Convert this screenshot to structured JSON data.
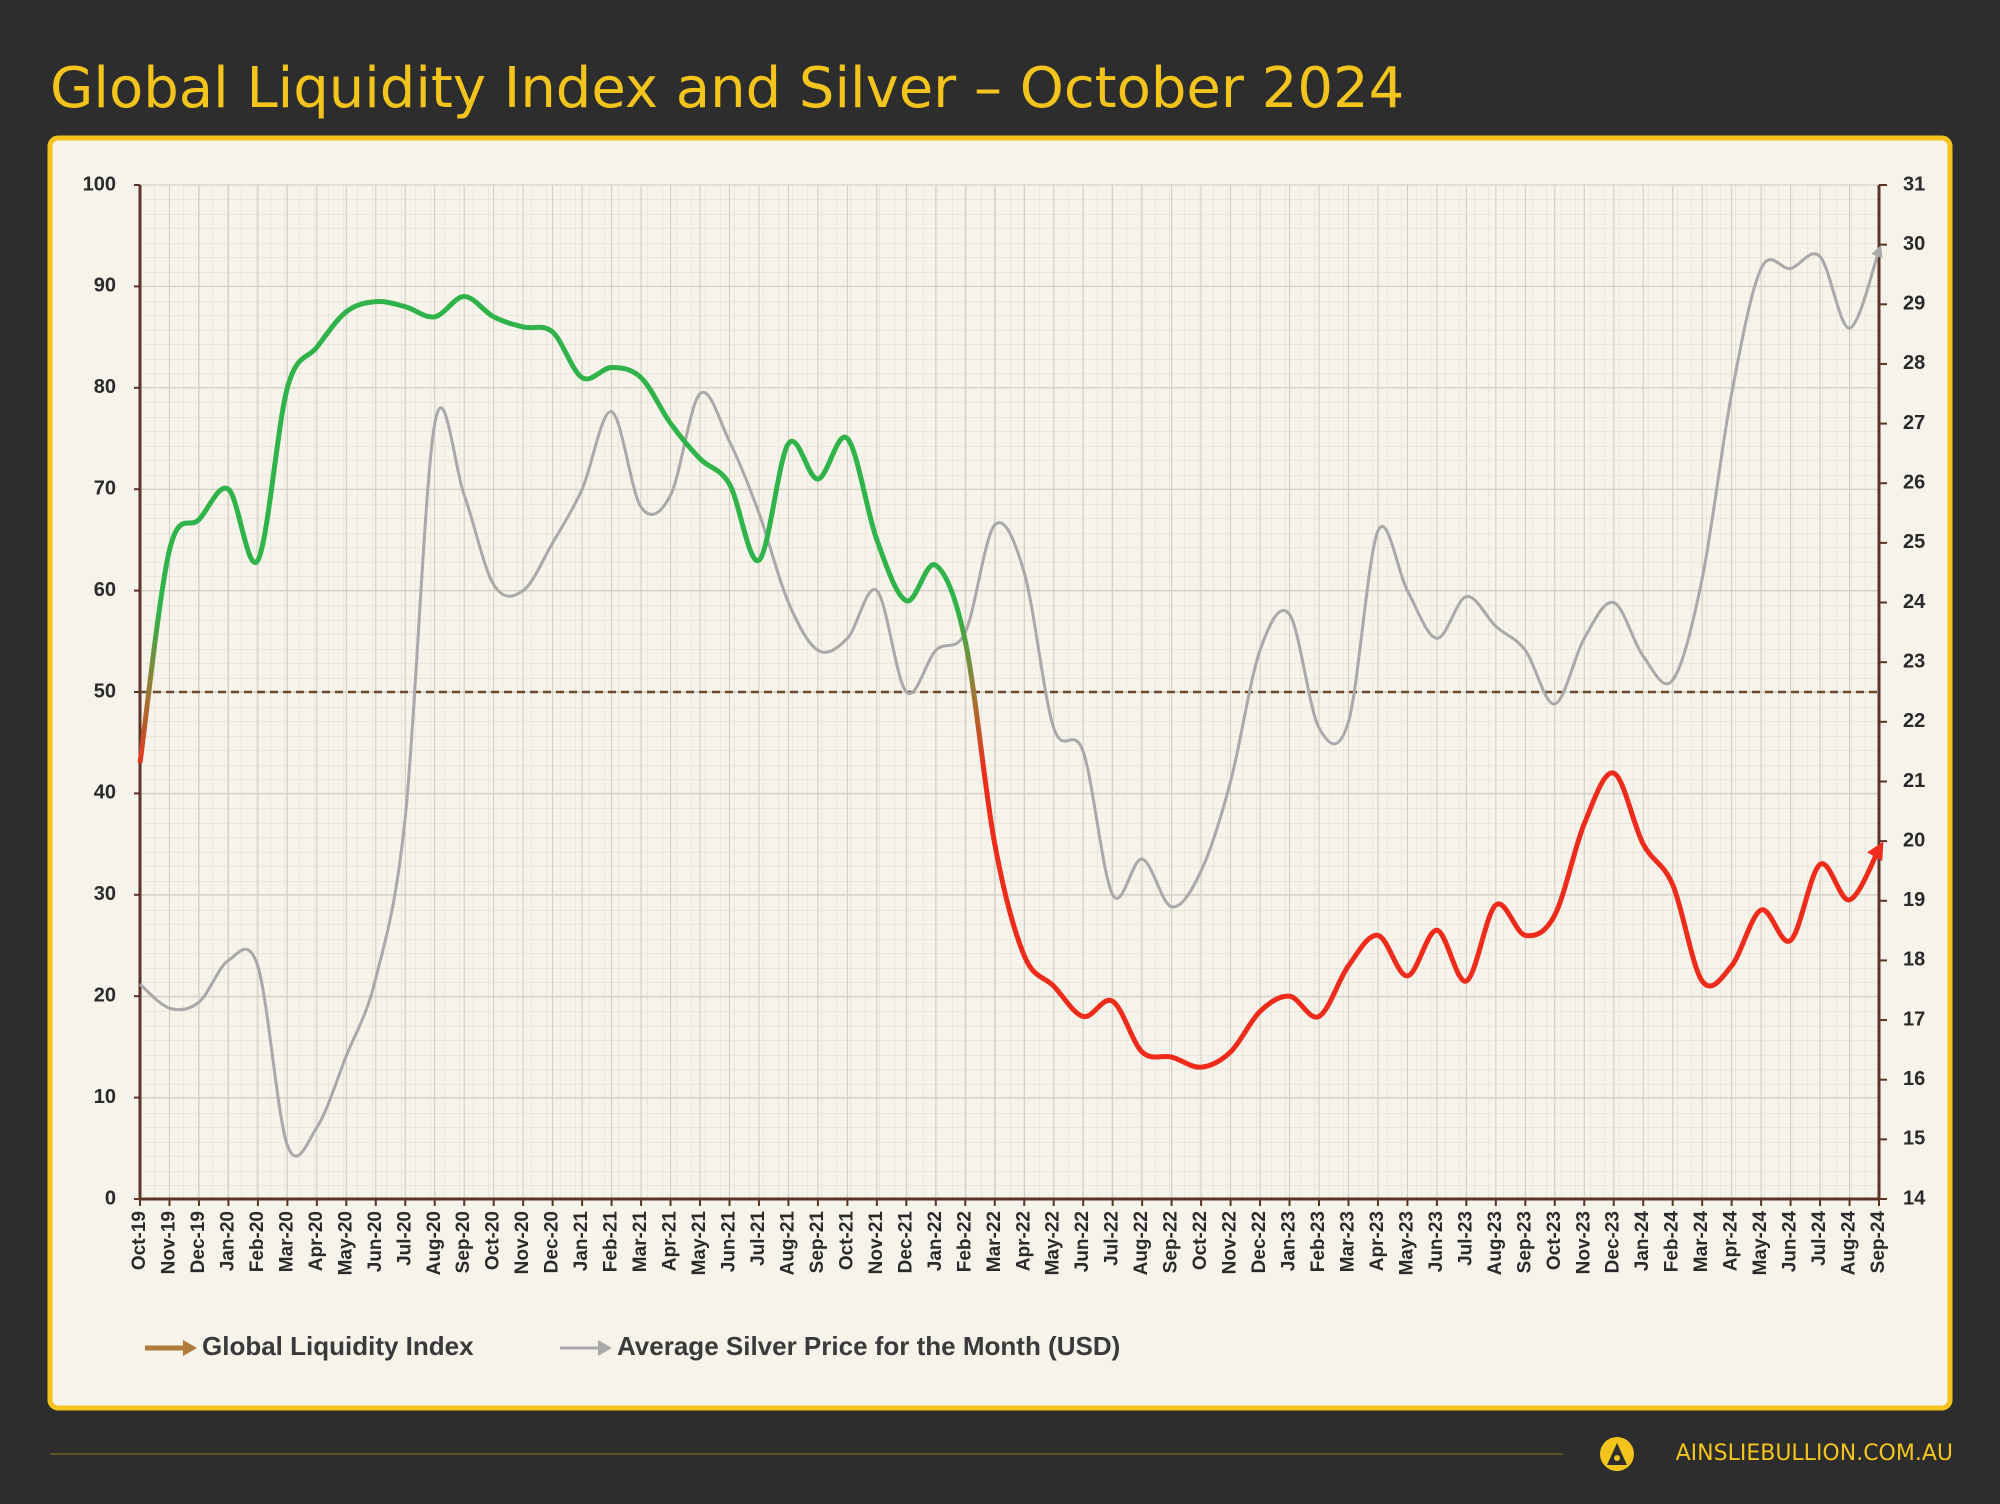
{
  "chart_data": {
    "type": "line",
    "title": "Global Liquidity Index and Silver – October 2024",
    "footer": "AINSLIEBULLION.COM.AU",
    "categories": [
      "Oct-19",
      "Nov-19",
      "Dec-19",
      "Jan-20",
      "Feb-20",
      "Mar-20",
      "Apr-20",
      "May-20",
      "Jun-20",
      "Jul-20",
      "Aug-20",
      "Sep-20",
      "Oct-20",
      "Nov-20",
      "Dec-20",
      "Jan-21",
      "Feb-21",
      "Mar-21",
      "Apr-21",
      "May-21",
      "Jun-21",
      "Jul-21",
      "Aug-21",
      "Sep-21",
      "Oct-21",
      "Nov-21",
      "Dec-21",
      "Jan-22",
      "Feb-22",
      "Mar-22",
      "Apr-22",
      "May-22",
      "Jun-22",
      "Jul-22",
      "Aug-22",
      "Sep-22",
      "Oct-22",
      "Nov-22",
      "Dec-22",
      "Jan-23",
      "Feb-23",
      "Mar-23",
      "Apr-23",
      "May-23",
      "Jun-23",
      "Jul-23",
      "Aug-23",
      "Sep-23",
      "Oct-23",
      "Nov-23",
      "Dec-23",
      "Jan-24",
      "Feb-24",
      "Mar-24",
      "Apr-24",
      "May-24",
      "Jun-24",
      "Jul-24",
      "Aug-24",
      "Sep-24"
    ],
    "series": [
      {
        "name": "Global Liquidity Index",
        "color": "#b07a3a",
        "gradient": [
          "#2fb34a",
          "#9a7a35",
          "#ef2b1c"
        ],
        "values": [
          43,
          64,
          67,
          70,
          63,
          80,
          84,
          87.5,
          88.5,
          88,
          87,
          89,
          87,
          86,
          85.5,
          81,
          82,
          81,
          76.5,
          73,
          70.5,
          63,
          74.5,
          71,
          75,
          65,
          59,
          62.5,
          55,
          35,
          24,
          21,
          18,
          19.5,
          14.5,
          14,
          13,
          14.5,
          18.5,
          20,
          18,
          23,
          26,
          22,
          26.5,
          21.5,
          29,
          26,
          28,
          37,
          42,
          35,
          31,
          21.5,
          23,
          28.5,
          25.5,
          33,
          29.5,
          34.5
        ]
      },
      {
        "name": "Average Silver Price for the Month (USD)",
        "color": "#a9a9a9",
        "axis": "y2",
        "values": [
          17.6,
          17.2,
          17.3,
          18,
          17.9,
          14.9,
          15.2,
          16.4,
          17.7,
          20.4,
          27,
          25.8,
          24.3,
          24.2,
          25,
          25.9,
          27.2,
          25.6,
          25.8,
          27.5,
          26.7,
          25.5,
          24,
          23.2,
          23.4,
          24.2,
          22.5,
          23.2,
          23.5,
          25.3,
          24.5,
          21.9,
          21.5,
          19.1,
          19.7,
          18.9,
          19.5,
          21,
          23.2,
          23.8,
          21.9,
          22,
          25.2,
          24.2,
          23.4,
          24.1,
          23.6,
          23.2,
          22.3,
          23.4,
          24,
          23.1,
          22.7,
          24.4,
          27.5,
          29.6,
          29.6,
          29.8,
          28.6,
          29.9
        ]
      }
    ],
    "threshold": 50,
    "ylim": [
      0,
      100
    ],
    "yticks": [
      0,
      10,
      20,
      30,
      40,
      50,
      60,
      70,
      80,
      90,
      100
    ],
    "y2lim": [
      14,
      31
    ],
    "y2ticks": [
      14,
      15,
      16,
      17,
      18,
      19,
      20,
      21,
      22,
      23,
      24,
      25,
      26,
      27,
      28,
      29,
      30,
      31
    ],
    "grid": true,
    "legend": "bottom-left"
  }
}
